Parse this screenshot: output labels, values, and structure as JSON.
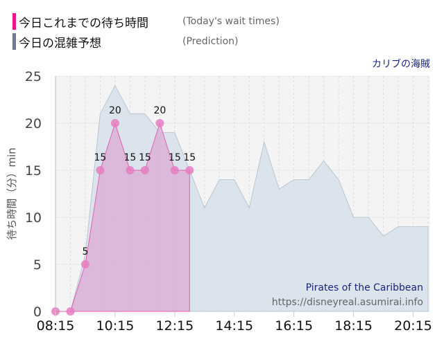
{
  "legend": [
    {
      "jp": "今日これまでの待ち時間",
      "en": "(Today's wait times)",
      "color": "#f0168c"
    },
    {
      "jp": "今日の混雑予想",
      "en": "(Prediction)",
      "color": "#6f7a8f"
    }
  ],
  "attraction_jp": "カリブの海賊",
  "watermark": {
    "name": "Pirates of the Caribbean",
    "url": "https://disneyreal.asumirai.info"
  },
  "chart_data": {
    "type": "area",
    "ylabel": "待ち時間（分）min",
    "ylim": [
      0,
      25
    ],
    "yticks": [
      0,
      5,
      10,
      15,
      20,
      25
    ],
    "xlim": [
      "08:15",
      "20:45"
    ],
    "xticks": [
      "08:15",
      "10:15",
      "12:15",
      "14:15",
      "16:15",
      "18:15",
      "20:15"
    ],
    "grid": true,
    "series": [
      {
        "name": "今日の混雑予想",
        "color": "#d6e1ea",
        "x": [
          "08:15",
          "08:45",
          "09:15",
          "09:45",
          "10:15",
          "10:45",
          "11:15",
          "11:45",
          "12:15",
          "12:45",
          "13:15",
          "13:45",
          "14:15",
          "14:45",
          "15:15",
          "15:45",
          "16:15",
          "16:45",
          "17:15",
          "17:45",
          "18:15",
          "18:45",
          "19:15",
          "19:45",
          "20:15",
          "20:45"
        ],
        "values": [
          0,
          0,
          6,
          21,
          24,
          21,
          21,
          19,
          19,
          15,
          11,
          14,
          14,
          11,
          18,
          13,
          14,
          14,
          16,
          14,
          10,
          10,
          8,
          9,
          9,
          9
        ]
      },
      {
        "name": "今日これまでの待ち時間",
        "color": "#e87dc0",
        "x": [
          "08:15",
          "08:45",
          "09:15",
          "09:45",
          "10:15",
          "10:45",
          "11:15",
          "11:45",
          "12:15",
          "12:45"
        ],
        "values": [
          0,
          0,
          5,
          15,
          20,
          15,
          15,
          20,
          15,
          15
        ],
        "labels": [
          "",
          "",
          "5",
          "15",
          "20",
          "15",
          "15",
          "20",
          "15",
          "15"
        ]
      }
    ]
  }
}
